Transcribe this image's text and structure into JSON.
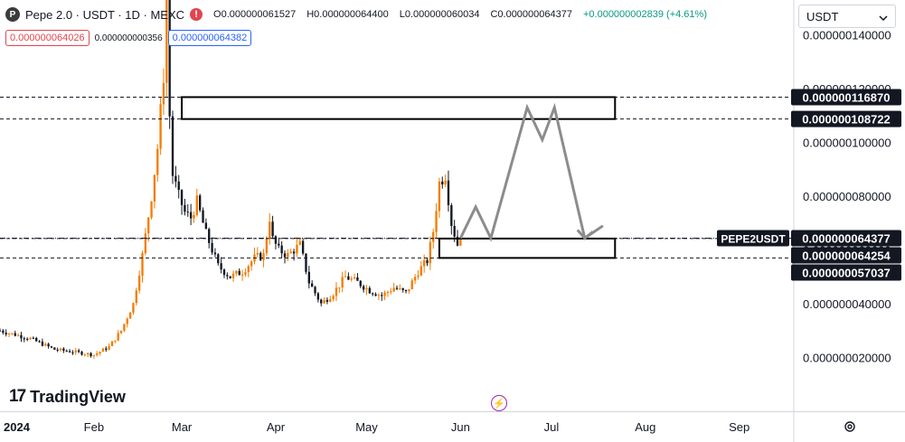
{
  "header": {
    "logo_letter": "P",
    "title": "Pepe 2.0 · USDT · 1D · MEXC",
    "open": "O0.000000061527",
    "high": "H0.000000064400",
    "low": "L0.000000060034",
    "close": "C0.000000064377",
    "change": "+0.000000002839 (+4.61%)",
    "alert_icon": "!"
  },
  "quote": {
    "bid": "0.000000064026",
    "spread": "0.000000000356",
    "ask": "0.000000064382"
  },
  "currency": {
    "label": "USDT",
    "icon": "chevron-down-icon"
  },
  "brand": {
    "name": "TradingView",
    "mark": "17"
  },
  "bolt_icon": "⚡",
  "settings_icon": "gear-icon",
  "chart_data": {
    "type": "candlestick",
    "symbol": "PEPE2USDT",
    "up_color": "#f57c00",
    "down_color": "#131722",
    "x_ticks": [
      "2024",
      "Feb",
      "Mar",
      "Apr",
      "May",
      "Jun",
      "Jul",
      "Aug",
      "Sep"
    ],
    "y_ticks": [
      "0.000000140000",
      "0.000000120000",
      "0.000000100000",
      "0.000000080000",
      "0.000000060000",
      "0.000000040000",
      "0.000000020000"
    ],
    "y_tick_values": [
      140,
      120,
      100,
      80,
      60,
      40,
      20
    ],
    "ylim": [
      0,
      153
    ],
    "price_unit": "1e-9 USDT",
    "x_range_days": [
      0,
      262
    ],
    "x_tick_days": [
      0,
      31,
      60,
      91,
      121,
      152,
      182,
      213,
      244
    ],
    "candle_keypoints": [
      [
        0,
        30
      ],
      [
        10,
        27
      ],
      [
        18,
        23
      ],
      [
        25,
        22
      ],
      [
        31,
        21
      ],
      [
        36,
        24
      ],
      [
        40,
        30
      ],
      [
        44,
        40
      ],
      [
        47,
        58
      ],
      [
        50,
        80
      ],
      [
        52,
        98
      ],
      [
        54,
        125
      ],
      [
        55,
        153
      ],
      [
        56,
        110
      ],
      [
        57,
        88
      ],
      [
        59,
        80
      ],
      [
        61,
        74
      ],
      [
        63,
        72
      ],
      [
        65,
        78
      ],
      [
        68,
        66
      ],
      [
        72,
        54
      ],
      [
        76,
        50
      ],
      [
        80,
        52
      ],
      [
        84,
        57
      ],
      [
        87,
        58
      ],
      [
        89,
        72
      ],
      [
        90,
        64
      ],
      [
        92,
        60
      ],
      [
        95,
        58
      ],
      [
        99,
        62
      ],
      [
        102,
        48
      ],
      [
        106,
        40
      ],
      [
        110,
        44
      ],
      [
        114,
        50
      ],
      [
        118,
        48
      ],
      [
        122,
        45
      ],
      [
        126,
        43
      ],
      [
        130,
        46
      ],
      [
        134,
        44
      ],
      [
        138,
        52
      ],
      [
        141,
        56
      ],
      [
        143,
        67
      ],
      [
        145,
        85
      ],
      [
        147,
        88
      ],
      [
        149,
        70
      ],
      [
        151,
        62
      ],
      [
        152,
        64.4
      ]
    ],
    "price_lines": [
      {
        "value": 116.87,
        "label": "0.000000116870",
        "style": "dashed"
      },
      {
        "value": 108.722,
        "label": "0.000000108722",
        "style": "dashed"
      },
      {
        "value": 64.377,
        "label": "0.000000064377",
        "style": "dashdot",
        "name_label": "PEPE2USDT"
      },
      {
        "value": 64.254,
        "label": "0.000000064254",
        "style": "dashed"
      },
      {
        "value": 57.037,
        "label": "0.000000057037",
        "style": "dashed"
      }
    ],
    "zones": [
      {
        "x_start": 60,
        "x_end": 203,
        "y_low": 108.722,
        "y_high": 116.87
      },
      {
        "x_start": 145,
        "x_end": 203,
        "y_low": 57.037,
        "y_high": 64.254
      }
    ],
    "projection": [
      [
        152,
        64.4
      ],
      [
        157,
        76
      ],
      [
        162,
        64.4
      ],
      [
        174,
        113
      ],
      [
        179,
        101
      ],
      [
        183,
        113
      ],
      [
        193,
        64.4
      ],
      [
        199,
        69
      ]
    ]
  }
}
